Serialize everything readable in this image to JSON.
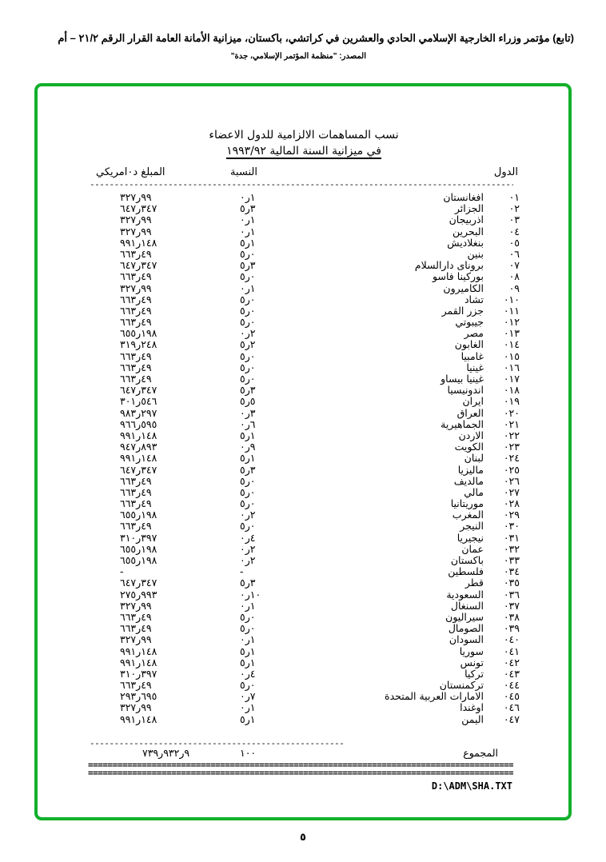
{
  "header": {
    "line1": "(تابع) مؤتمر وزراء الخارجية الإسلامي الحادي والعشرين في كراتشي، باكستان،  ميزانية الأمانة العامة القرار الرقم ٢١/٢ – أم",
    "line2": "المصدر:  \"منظمة المؤتمر الإسلامي، جدة\""
  },
  "document": {
    "title_line1": "نسب المساهمات الالزامية للدول الاعضاء",
    "title_line2": "في ميزانية السنة المالية ١٩٩٣/٩٢",
    "columns": {
      "country": "الدول",
      "percentage": "النسبة",
      "amount": "المبلغ د٠امريكي"
    },
    "rows": [
      [
        "٠١",
        "افغانستان",
        "١ر٠",
        "٩٩ر٣٢٧"
      ],
      [
        "٠٢",
        "الجزائر",
        "٣ر٥",
        "٣٤٧ر٦٤٧"
      ],
      [
        "٠٣",
        "اذربيجان",
        "١ر٠",
        "٩٩ر٣٢٧"
      ],
      [
        "٠٤",
        "البحرين",
        "١ر٠",
        "٩٩ر٣٢٧"
      ],
      [
        "٠٥",
        "بنغلاديش",
        "١ر٥",
        "١٤٨ر٩٩١"
      ],
      [
        "٠٦",
        "بنين",
        "٠ر٥",
        "٤٩ر٦٦٣"
      ],
      [
        "٠٧",
        "بروناى دارالسلام",
        "٣ر٥",
        "٣٤٧ر٦٤٧"
      ],
      [
        "٠٨",
        "بوركينا فاسو",
        "٠ر٥",
        "٤٩ر٦٦٣"
      ],
      [
        "٠٩",
        "الكاميرون",
        "١ر٠",
        "٩٩ر٣٢٧"
      ],
      [
        "٠١٠",
        "تشاد",
        "٠ر٥",
        "٤٩ر٦٦٣"
      ],
      [
        "٠١١",
        "جزر القمر",
        "٠ر٥",
        "٤٩ر٦٦٣"
      ],
      [
        "٠١٢",
        "جيبوتي",
        "٠ر٥",
        "٤٩ر٦٦٣"
      ],
      [
        "٠١٣",
        "مصر",
        "٢ر٠",
        "١٩٨ر٦٥٥"
      ],
      [
        "٠١٤",
        "الغابون",
        "٢ر٥",
        "٢٤٨ر٣١٩"
      ],
      [
        "٠١٥",
        "غامبيا",
        "٠ر٥",
        "٤٩ر٦٦٣"
      ],
      [
        "٠١٦",
        "غينيا",
        "٠ر٥",
        "٤٩ر٦٦٣"
      ],
      [
        "٠١٧",
        "غينيا بيساو",
        "٠ر٥",
        "٤٩ر٦٦٣"
      ],
      [
        "٠١٨",
        "اندونيسيا",
        "٣ر٥",
        "٣٤٧ر٦٤٧"
      ],
      [
        "٠١٩",
        "ايران",
        "٥ر٥",
        "٥٤٦ر٣٠١"
      ],
      [
        "٠٢٠",
        "العراق",
        "٣ر٠",
        "٢٩٧ر٩٨٣"
      ],
      [
        "٠٢١",
        "الجماهيرية",
        "٦ر٠",
        "٥٩٥ر٩٦٦"
      ],
      [
        "٠٢٢",
        "الاردن",
        "١ر٥",
        "١٤٨ر٩٩١"
      ],
      [
        "٠٢٣",
        "الكويت",
        "٩ر٠",
        "٨٩٣ر٩٤٧"
      ],
      [
        "٠٢٤",
        "لبنان",
        "١ر٥",
        "١٤٨ر٩٩١"
      ],
      [
        "٠٢٥",
        "ماليزيا",
        "٣ر٥",
        "٣٤٧ر٦٤٧"
      ],
      [
        "٠٢٦",
        "مالديف",
        "٠ر٥",
        "٤٩ر٦٦٣"
      ],
      [
        "٠٢٧",
        "مالي",
        "٠ر٥",
        "٤٩ر٦٦٣"
      ],
      [
        "٠٢٨",
        "موريتانيا",
        "٠ر٥",
        "٤٩ر٦٦٣"
      ],
      [
        "٠٢٩",
        "المغرب",
        "٢ر٠",
        "١٩٨ر٦٥٥"
      ],
      [
        "٠٣٠",
        "النيجر",
        "٠ر٥",
        "٤٩ر٦٦٣"
      ],
      [
        "٠٣١",
        "نيجيريا",
        "٤ر٠",
        "٣٩٧ر٣١٠"
      ],
      [
        "٠٣٢",
        "عمان",
        "٢ر٠",
        "١٩٨ر٦٥٥"
      ],
      [
        "٠٣٣",
        "باكستان",
        "٢ر٠",
        "١٩٨ر٦٥٥"
      ],
      [
        "٠٣٤",
        "فلسطين",
        "-",
        "-"
      ],
      [
        "٠٣٥",
        "قطر",
        "٣ر٥",
        "٣٤٧ر٦٤٧"
      ],
      [
        "٠٣٦",
        "السعودية",
        "١٠ر٠",
        "٩٩٣ر٢٧٥"
      ],
      [
        "٠٣٧",
        "السنغال",
        "١ر٠",
        "٩٩ر٣٢٧"
      ],
      [
        "٠٣٨",
        "سيراليون",
        "٠ر٥",
        "٤٩ر٦٦٣"
      ],
      [
        "٠٣٩",
        "الصومال",
        "٠ر٥",
        "٤٩ر٦٦٣"
      ],
      [
        "٠٤٠",
        "السودان",
        "١ر٠",
        "٩٩ر٣٢٧"
      ],
      [
        "٠٤١",
        "سوريا",
        "١ر٥",
        "١٤٨ر٩٩١"
      ],
      [
        "٠٤٢",
        "تونس",
        "١ر٥",
        "١٤٨ر٩٩١"
      ],
      [
        "٠٤٣",
        "تركيا",
        "٤ر٠",
        "٣٩٧ر٣١٠"
      ],
      [
        "٠٤٤",
        "تركمنستان",
        "٠ر٥",
        "٤٩ر٦٦٣"
      ],
      [
        "٠٤٥",
        "الامارات العربية المتحدة",
        "٧ر٠",
        "٦٩٥ر٢٩٣"
      ],
      [
        "٠٤٦",
        "اوغندا",
        "١ر٠",
        "٩٩ر٣٢٧"
      ],
      [
        "٠٤٧",
        "اليمن",
        "١ر٥",
        "١٤٨ر٩٩١"
      ]
    ],
    "total": {
      "label": "المجموع",
      "percentage": "١٠٠",
      "amount": "٩ر٩٣٢ر٧٣٩"
    },
    "file_path": "D:\\ADM\\SHA.TXT"
  },
  "page_number": "٥",
  "colors": {
    "frame": "#12b02b"
  }
}
